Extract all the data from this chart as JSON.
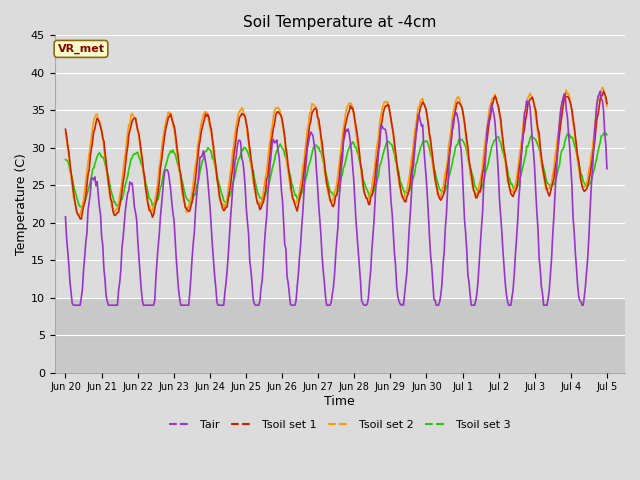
{
  "title": "Soil Temperature at -4cm",
  "xlabel": "Time",
  "ylabel": "Temperature (C)",
  "ylim": [
    0,
    45
  ],
  "yticks": [
    0,
    5,
    10,
    15,
    20,
    25,
    30,
    35,
    40,
    45
  ],
  "bg_light": "#dcdcdc",
  "bg_dark": "#c8c8c8",
  "grid_color": "white",
  "annotation_text": "VR_met",
  "annotation_bg": "#ffffcc",
  "annotation_border": "#8B4513",
  "tair_color": "#9933cc",
  "tsoil1_color": "#cc2200",
  "tsoil2_color": "#ff9900",
  "tsoil3_color": "#22cc00",
  "line_width": 1.2,
  "tick_labels": [
    "Jun 20",
    "Jun 21",
    "Jun 22",
    "Jun 23",
    "Jun 24",
    "Jun 25",
    "Jun 26",
    "Jun 27",
    "Jun 28",
    "Jun 29",
    "Jun 30",
    "Jul 1",
    "Jul 2",
    "Jul 3",
    "Jul 4",
    "Jul 5"
  ]
}
